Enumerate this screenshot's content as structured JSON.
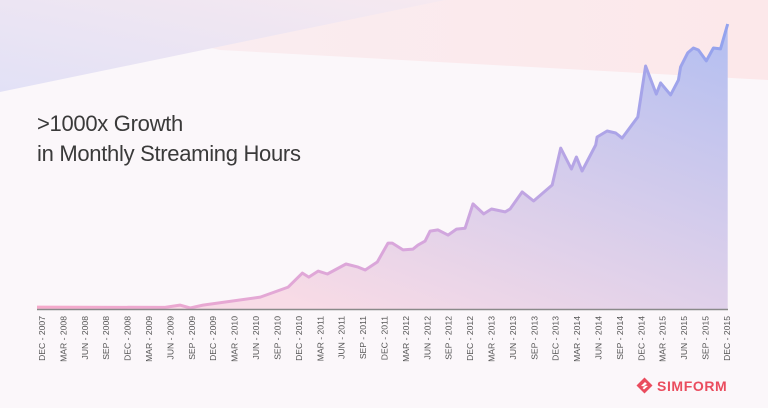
{
  "title_lines": [
    ">1000x Growth",
    "in Monthly Streaming Hours"
  ],
  "brand": {
    "name": "SIMFORM",
    "color": "#ea4c5e"
  },
  "colors": {
    "line_start": "#f6aacb",
    "line_end": "#93a3ee",
    "fill_start": "#f8dbe6",
    "fill_end": "#b7c0f0",
    "axis": "#8a8a8a"
  },
  "chart_data": {
    "type": "area",
    "title": ">1000x Growth in Monthly Streaming Hours",
    "xlabel": "",
    "ylabel": "",
    "ylim": [
      0,
      100
    ],
    "grid": false,
    "legend": "none",
    "x_ticks": [
      "DEC - 2007",
      "MAR - 2008",
      "JUN - 2008",
      "SEP - 2008",
      "DEC - 2008",
      "MAR - 2009",
      "JUN - 2009",
      "SEP - 2009",
      "DEC - 2009",
      "MAR - 2010",
      "JUN - 2010",
      "SEP - 2010",
      "DEC - 2010",
      "MAR - 2011",
      "JUN - 2011",
      "SEP - 2011",
      "DEC - 2011",
      "MAR - 2012",
      "JUN - 2012",
      "SEP - 2012",
      "DEC - 2012",
      "MAR - 2013",
      "JUN - 2013",
      "SEP - 2013",
      "DEC - 2013",
      "MAR - 2014",
      "JUN - 2014",
      "SEP - 2014",
      "DEC - 2014",
      "MAR - 2015",
      "JUN - 2015",
      "SEP - 2015",
      "DEC - 2015"
    ],
    "x": [
      "2007-12-01",
      "2009-05-08",
      "2009-07-11",
      "2009-08-24",
      "2009-10-18",
      "2010-06-19",
      "2010-10-16",
      "2010-12-16",
      "2011-01-13",
      "2011-02-22",
      "2011-04-01",
      "2011-06-19",
      "2011-08-10",
      "2011-09-10",
      "2011-11-01",
      "2011-12-16",
      "2012-01-04",
      "2012-02-19",
      "2012-04-01",
      "2012-04-22",
      "2012-05-22",
      "2012-06-13",
      "2012-07-16",
      "2012-08-28",
      "2012-10-04",
      "2012-11-10",
      "2012-12-13",
      "2013-01-28",
      "2013-03-01",
      "2013-04-28",
      "2013-05-19",
      "2013-07-10",
      "2013-08-28",
      "2013-11-16",
      "2013-12-22",
      "2014-02-07",
      "2014-02-28",
      "2014-03-22",
      "2014-05-19",
      "2014-05-25",
      "2014-07-07",
      "2014-08-13",
      "2014-09-10",
      "2014-11-16",
      "2014-12-19",
      "2015-02-04",
      "2015-02-22",
      "2015-04-04",
      "2015-05-07",
      "2015-05-16",
      "2015-06-16",
      "2015-07-10",
      "2015-08-01",
      "2015-09-04",
      "2015-10-04",
      "2015-11-04",
      "2015-12-04"
    ],
    "values": [
      0.3,
      0.2,
      1.0,
      0,
      1.0,
      3.8,
      7.3,
      12.2,
      10.8,
      12.9,
      11.9,
      15.4,
      14.3,
      13.3,
      16.1,
      22.7,
      22.7,
      20.3,
      20.6,
      22.0,
      23.4,
      26.9,
      27.3,
      25.5,
      27.6,
      27.9,
      36.4,
      32.9,
      34.6,
      33.6,
      34.6,
      40.6,
      37.4,
      43.0,
      55.9,
      48.6,
      52.8,
      47.9,
      57.0,
      59.8,
      61.9,
      61.2,
      59.4,
      66.8,
      84.6,
      74.8,
      78.7,
      74.5,
      79.7,
      84.3,
      89.2,
      90.9,
      90.2,
      86.4,
      90.9,
      90.6,
      99.3
    ]
  }
}
